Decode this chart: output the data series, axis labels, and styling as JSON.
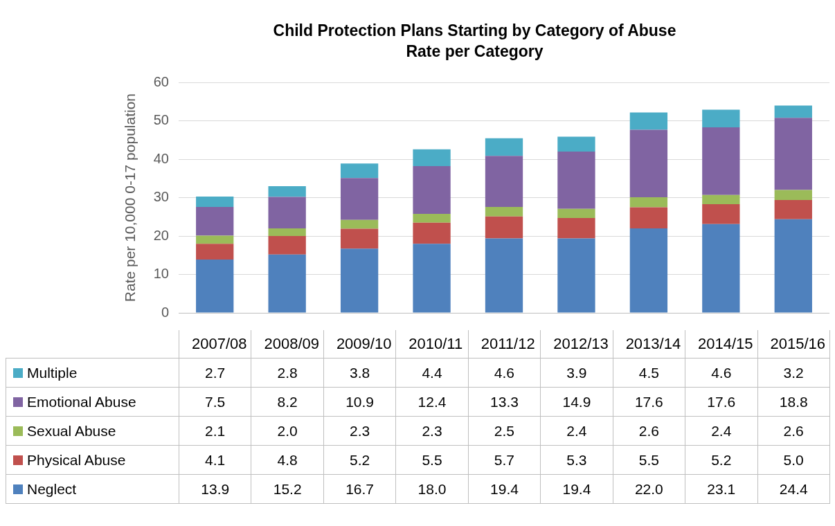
{
  "chart_data": {
    "type": "bar",
    "title": "Child Protection Plans Starting by Category of Abuse",
    "subtitle": "Rate per Category",
    "ylabel": "Rate per 10,000 0-17 population",
    "categories": [
      "2007/08",
      "2008/09",
      "2009/10",
      "2010/11",
      "2011/12",
      "2012/13",
      "2013/14",
      "2014/15",
      "2015/16"
    ],
    "stacked": true,
    "ylim": [
      0,
      60
    ],
    "yticks": [
      0,
      10,
      20,
      30,
      40,
      50,
      60
    ],
    "grid": "y",
    "legend": "bottom",
    "series": [
      {
        "name": "Neglect",
        "color": "#4f81bd",
        "values": [
          13.9,
          15.2,
          16.7,
          18.0,
          19.4,
          19.4,
          22.0,
          23.1,
          24.4
        ],
        "value_labels": [
          "13.9",
          "15.2",
          "16.7",
          "18.0",
          "19.4",
          "19.4",
          "22.0",
          "23.1",
          "24.4"
        ]
      },
      {
        "name": "Physical Abuse",
        "color": "#c0504d",
        "values": [
          4.1,
          4.8,
          5.2,
          5.5,
          5.7,
          5.3,
          5.5,
          5.2,
          5.0
        ],
        "value_labels": [
          "4.1",
          "4.8",
          "5.2",
          "5.5",
          "5.7",
          "5.3",
          "5.5",
          "5.2",
          "5.0"
        ]
      },
      {
        "name": "Sexual Abuse",
        "color": "#9bbb59",
        "values": [
          2.1,
          2.0,
          2.3,
          2.3,
          2.5,
          2.4,
          2.6,
          2.4,
          2.6
        ],
        "value_labels": [
          "2.1",
          "2.0",
          "2.3",
          "2.3",
          "2.5",
          "2.4",
          "2.6",
          "2.4",
          "2.6"
        ]
      },
      {
        "name": "Emotional Abuse",
        "color": "#8064a2",
        "values": [
          7.5,
          8.2,
          10.9,
          12.4,
          13.3,
          14.9,
          17.6,
          17.6,
          18.8
        ],
        "value_labels": [
          "7.5",
          "8.2",
          "10.9",
          "12.4",
          "13.3",
          "14.9",
          "17.6",
          "17.6",
          "18.8"
        ]
      },
      {
        "name": "Multiple",
        "color": "#4bacc6",
        "values": [
          2.7,
          2.8,
          3.8,
          4.4,
          4.6,
          3.9,
          4.5,
          4.6,
          3.2
        ],
        "value_labels": [
          "2.7",
          "2.8",
          "3.8",
          "4.4",
          "4.6",
          "3.9",
          "4.5",
          "4.6",
          "3.2"
        ]
      }
    ]
  }
}
